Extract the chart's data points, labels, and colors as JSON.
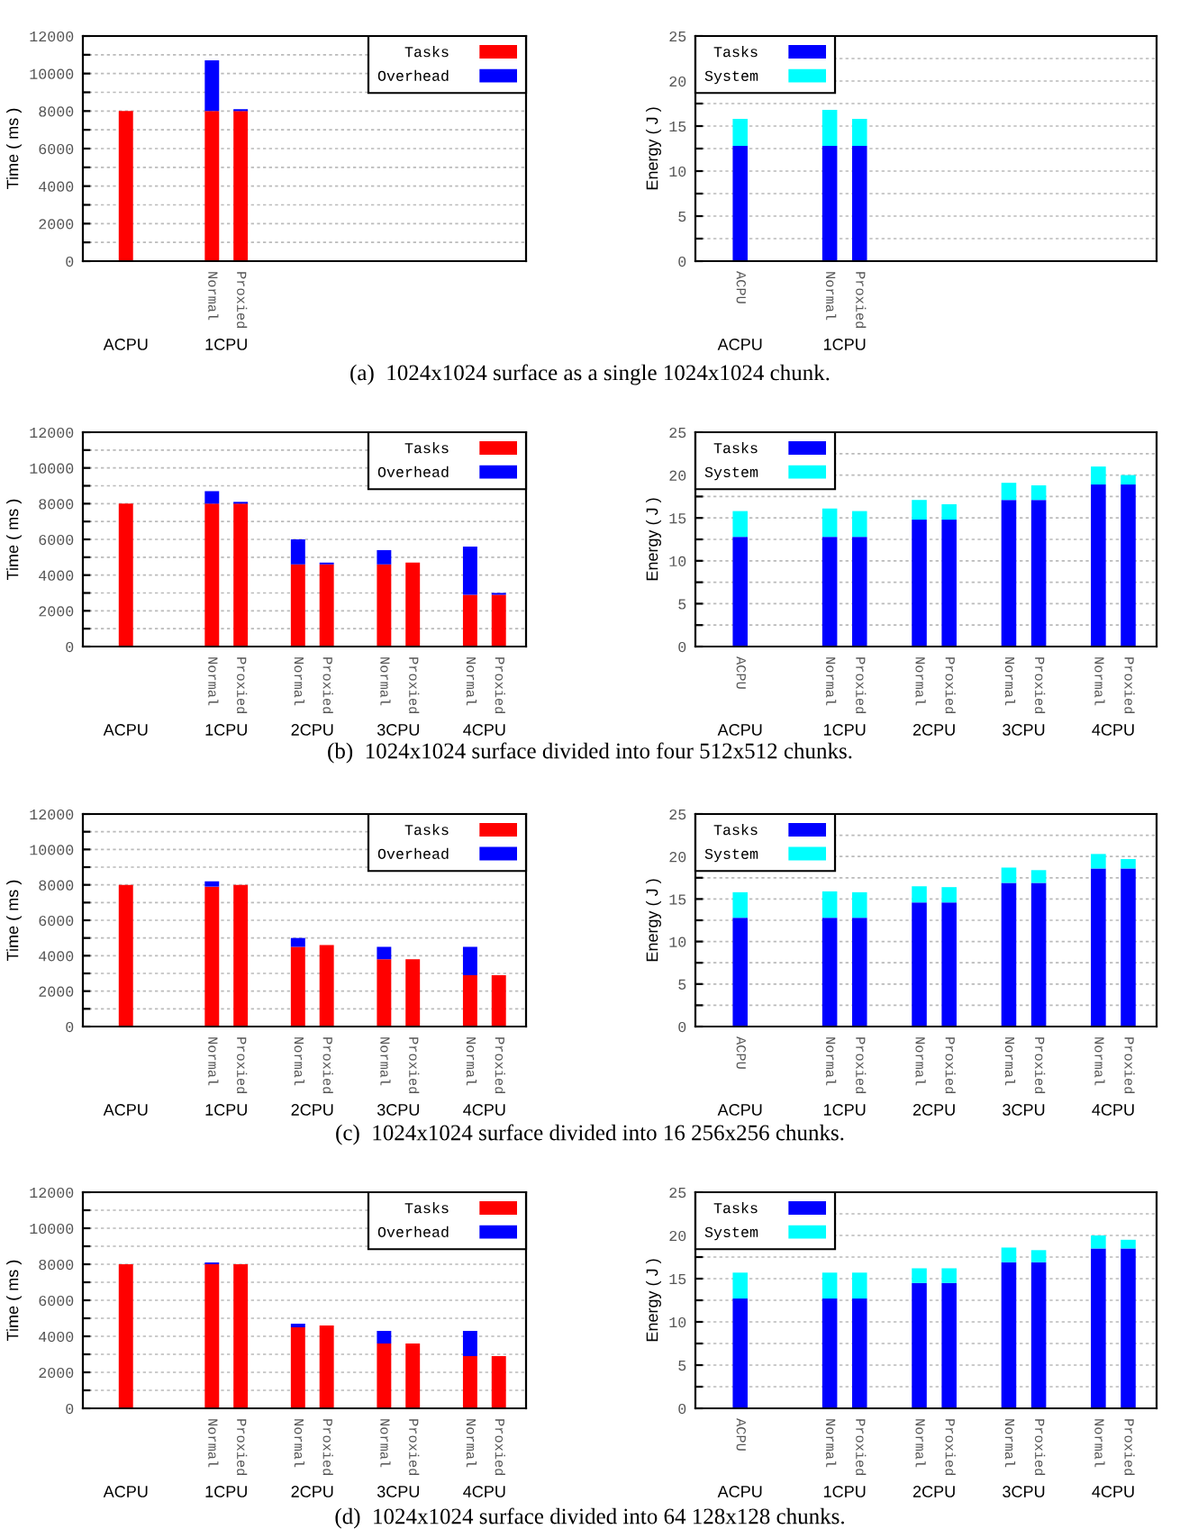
{
  "chart_data": [
    {
      "type": "bar",
      "stacked": true,
      "title": "(a)  1024x1024 surface as a single 1024x1024 chunk.",
      "ylabel": "Time ( ms )",
      "categories": [
        null,
        null,
        null,
        "Normal",
        "Proxied",
        null,
        null,
        null,
        null,
        null,
        null,
        null,
        null,
        null
      ],
      "series": [
        {
          "name": "Tasks",
          "color": "#ff0000",
          "values": [
            8000,
            null,
            null,
            8000,
            8000,
            null,
            null,
            null,
            null,
            null,
            null,
            null,
            null,
            null
          ]
        },
        {
          "name": "Overhead",
          "color": "#0000ff",
          "values": [
            null,
            null,
            null,
            2700,
            100,
            null,
            null,
            null,
            null,
            null,
            null,
            null,
            null,
            null
          ]
        }
      ],
      "ylim": [
        0,
        12000
      ],
      "yticks": [
        0,
        {
          "value": 1000,
          "label": null
        },
        2000,
        {
          "value": 3000,
          "label": null
        },
        4000,
        {
          "value": 5000,
          "label": null
        },
        6000,
        {
          "value": 7000,
          "label": null
        },
        8000,
        {
          "value": 9000,
          "label": null
        },
        10000,
        {
          "value": 11000,
          "label": null
        },
        12000
      ],
      "grid": "y",
      "legend": "top right",
      "annotations": [
        "ACPU",
        "1CPU"
      ]
    },
    {
      "type": "bar",
      "stacked": true,
      "ylabel": "Energy ( J )",
      "categories": [
        "ACPU",
        null,
        null,
        "Normal",
        "Proxied",
        null,
        null,
        null,
        null,
        null,
        null,
        null,
        null,
        null
      ],
      "series": [
        {
          "name": "Tasks",
          "color": "#0000ff",
          "values": [
            12.8,
            null,
            null,
            12.8,
            12.8,
            null,
            null,
            null,
            null,
            null,
            null,
            null,
            null,
            null
          ]
        },
        {
          "name": "System",
          "color": "#00ffff",
          "values": [
            3.0,
            null,
            null,
            4.0,
            3.0,
            null,
            null,
            null,
            null,
            null,
            null,
            null,
            null,
            null
          ]
        }
      ],
      "ylim": [
        0,
        25
      ],
      "yticks": [
        0,
        {
          "value": 2.5,
          "label": null
        },
        5,
        {
          "value": 7.5,
          "label": null
        },
        10,
        {
          "value": 12.5,
          "label": null
        },
        15,
        {
          "value": 17.5,
          "label": null
        },
        20,
        {
          "value": 22.5,
          "label": null
        },
        25
      ],
      "grid": "y",
      "legend": "top left",
      "annotations": [
        "ACPU",
        "1CPU"
      ]
    },
    {
      "type": "bar",
      "stacked": true,
      "title": "(b)  1024x1024 surface divided into four 512x512 chunks.",
      "ylabel": "Time ( ms )",
      "categories": [
        null,
        null,
        null,
        "Normal",
        "Proxied",
        null,
        "Normal",
        "Proxied",
        null,
        "Normal",
        "Proxied",
        null,
        "Normal",
        "Proxied"
      ],
      "series": [
        {
          "name": "Tasks",
          "color": "#ff0000",
          "values": [
            8000,
            null,
            null,
            8000,
            8000,
            null,
            4600,
            4600,
            null,
            4600,
            4700,
            null,
            2900,
            2900
          ]
        },
        {
          "name": "Overhead",
          "color": "#0000ff",
          "values": [
            null,
            null,
            null,
            700,
            100,
            null,
            1400,
            100,
            null,
            800,
            null,
            null,
            2700,
            100
          ]
        }
      ],
      "ylim": [
        0,
        12000
      ],
      "yticks": [
        0,
        {
          "value": 1000,
          "label": null
        },
        2000,
        {
          "value": 3000,
          "label": null
        },
        4000,
        {
          "value": 5000,
          "label": null
        },
        6000,
        {
          "value": 7000,
          "label": null
        },
        8000,
        {
          "value": 9000,
          "label": null
        },
        10000,
        {
          "value": 11000,
          "label": null
        },
        12000
      ],
      "grid": "y",
      "legend": "top right",
      "annotations": [
        "ACPU",
        "1CPU",
        "2CPU",
        "3CPU",
        "4CPU"
      ]
    },
    {
      "type": "bar",
      "stacked": true,
      "ylabel": "Energy ( J )",
      "categories": [
        "ACPU",
        null,
        null,
        "Normal",
        "Proxied",
        null,
        "Normal",
        "Proxied",
        null,
        "Normal",
        "Proxied",
        null,
        "Normal",
        "Proxied"
      ],
      "series": [
        {
          "name": "Tasks",
          "color": "#0000ff",
          "values": [
            12.8,
            null,
            null,
            12.8,
            12.8,
            null,
            14.8,
            14.8,
            null,
            17.1,
            17.1,
            null,
            18.9,
            18.9
          ]
        },
        {
          "name": "System",
          "color": "#00ffff",
          "values": [
            3.0,
            null,
            null,
            3.3,
            3.0,
            null,
            2.3,
            1.8,
            null,
            2.0,
            1.7,
            null,
            2.1,
            1.1
          ]
        }
      ],
      "ylim": [
        0,
        25
      ],
      "yticks": [
        0,
        {
          "value": 2.5,
          "label": null
        },
        5,
        {
          "value": 7.5,
          "label": null
        },
        10,
        {
          "value": 12.5,
          "label": null
        },
        15,
        {
          "value": 17.5,
          "label": null
        },
        20,
        {
          "value": 22.5,
          "label": null
        },
        25
      ],
      "grid": "y",
      "legend": "top left",
      "annotations": [
        "ACPU",
        "1CPU",
        "2CPU",
        "3CPU",
        "4CPU"
      ]
    },
    {
      "type": "bar",
      "stacked": true,
      "title": "(c)  1024x1024 surface divided into 16 256x256 chunks.",
      "ylabel": "Time ( ms )",
      "categories": [
        null,
        null,
        null,
        "Normal",
        "Proxied",
        null,
        "Normal",
        "Proxied",
        null,
        "Normal",
        "Proxied",
        null,
        "Normal",
        "Proxied"
      ],
      "series": [
        {
          "name": "Tasks",
          "color": "#ff0000",
          "values": [
            8000,
            null,
            null,
            7900,
            8000,
            null,
            4500,
            4600,
            null,
            3800,
            3800,
            null,
            2900,
            2900
          ]
        },
        {
          "name": "Overhead",
          "color": "#0000ff",
          "values": [
            null,
            null,
            null,
            300,
            null,
            null,
            500,
            null,
            null,
            700,
            null,
            null,
            1600,
            null
          ]
        }
      ],
      "ylim": [
        0,
        12000
      ],
      "yticks": [
        0,
        {
          "value": 1000,
          "label": null
        },
        2000,
        {
          "value": 3000,
          "label": null
        },
        4000,
        {
          "value": 5000,
          "label": null
        },
        6000,
        {
          "value": 7000,
          "label": null
        },
        8000,
        {
          "value": 9000,
          "label": null
        },
        10000,
        {
          "value": 11000,
          "label": null
        },
        12000
      ],
      "grid": "y",
      "legend": "top right",
      "annotations": [
        "ACPU",
        "1CPU",
        "2CPU",
        "3CPU",
        "4CPU"
      ]
    },
    {
      "type": "bar",
      "stacked": true,
      "ylabel": "Energy ( J )",
      "categories": [
        "ACPU",
        null,
        null,
        "Normal",
        "Proxied",
        null,
        "Normal",
        "Proxied",
        null,
        "Normal",
        "Proxied",
        null,
        "Normal",
        "Proxied"
      ],
      "series": [
        {
          "name": "Tasks",
          "color": "#0000ff",
          "values": [
            12.8,
            null,
            null,
            12.8,
            12.8,
            null,
            14.6,
            14.6,
            null,
            16.9,
            16.9,
            null,
            18.6,
            18.6
          ]
        },
        {
          "name": "System",
          "color": "#00ffff",
          "values": [
            3.0,
            null,
            null,
            3.1,
            3.0,
            null,
            1.9,
            1.8,
            null,
            1.8,
            1.5,
            null,
            1.7,
            1.1
          ]
        }
      ],
      "ylim": [
        0,
        25
      ],
      "yticks": [
        0,
        {
          "value": 2.5,
          "label": null
        },
        5,
        {
          "value": 7.5,
          "label": null
        },
        10,
        {
          "value": 12.5,
          "label": null
        },
        15,
        {
          "value": 17.5,
          "label": null
        },
        20,
        {
          "value": 22.5,
          "label": null
        },
        25
      ],
      "grid": "y",
      "legend": "top left",
      "annotations": [
        "ACPU",
        "1CPU",
        "2CPU",
        "3CPU",
        "4CPU"
      ]
    },
    {
      "type": "bar",
      "stacked": true,
      "title": "(d)  1024x1024 surface divided into 64 128x128 chunks.",
      "ylabel": "Time ( ms )",
      "categories": [
        null,
        null,
        null,
        "Normal",
        "Proxied",
        null,
        "Normal",
        "Proxied",
        null,
        "Normal",
        "Proxied",
        null,
        "Normal",
        "Proxied"
      ],
      "series": [
        {
          "name": "Tasks",
          "color": "#ff0000",
          "values": [
            8000,
            null,
            null,
            8000,
            8000,
            null,
            4500,
            4600,
            null,
            3600,
            3600,
            null,
            2900,
            2900
          ]
        },
        {
          "name": "Overhead",
          "color": "#0000ff",
          "values": [
            null,
            null,
            null,
            100,
            null,
            null,
            200,
            null,
            null,
            700,
            null,
            null,
            1400,
            null
          ]
        }
      ],
      "ylim": [
        0,
        12000
      ],
      "yticks": [
        0,
        {
          "value": 1000,
          "label": null
        },
        2000,
        {
          "value": 3000,
          "label": null
        },
        4000,
        {
          "value": 5000,
          "label": null
        },
        6000,
        {
          "value": 7000,
          "label": null
        },
        8000,
        {
          "value": 9000,
          "label": null
        },
        10000,
        {
          "value": 11000,
          "label": null
        },
        12000
      ],
      "grid": "y",
      "legend": "top right",
      "annotations": [
        "ACPU",
        "1CPU",
        "2CPU",
        "3CPU",
        "4CPU"
      ]
    },
    {
      "type": "bar",
      "stacked": true,
      "ylabel": "Energy ( J )",
      "categories": [
        "ACPU",
        null,
        null,
        "Normal",
        "Proxied",
        null,
        "Normal",
        "Proxied",
        null,
        "Normal",
        "Proxied",
        null,
        "Normal",
        "Proxied"
      ],
      "series": [
        {
          "name": "Tasks",
          "color": "#0000ff",
          "values": [
            12.7,
            null,
            null,
            12.7,
            12.7,
            null,
            14.5,
            14.5,
            null,
            16.9,
            16.9,
            null,
            18.5,
            18.5
          ]
        },
        {
          "name": "System",
          "color": "#00ffff",
          "values": [
            3.0,
            null,
            null,
            3.0,
            3.0,
            null,
            1.7,
            1.7,
            null,
            1.7,
            1.4,
            null,
            1.5,
            1.0
          ]
        }
      ],
      "ylim": [
        0,
        25
      ],
      "yticks": [
        0,
        {
          "value": 2.5,
          "label": null
        },
        5,
        {
          "value": 7.5,
          "label": null
        },
        10,
        {
          "value": 12.5,
          "label": null
        },
        15,
        {
          "value": 17.5,
          "label": null
        },
        20,
        {
          "value": 22.5,
          "label": null
        },
        25
      ],
      "grid": "y",
      "legend": "top left",
      "annotations": [
        "ACPU",
        "1CPU",
        "2CPU",
        "3CPU",
        "4CPU"
      ]
    }
  ]
}
